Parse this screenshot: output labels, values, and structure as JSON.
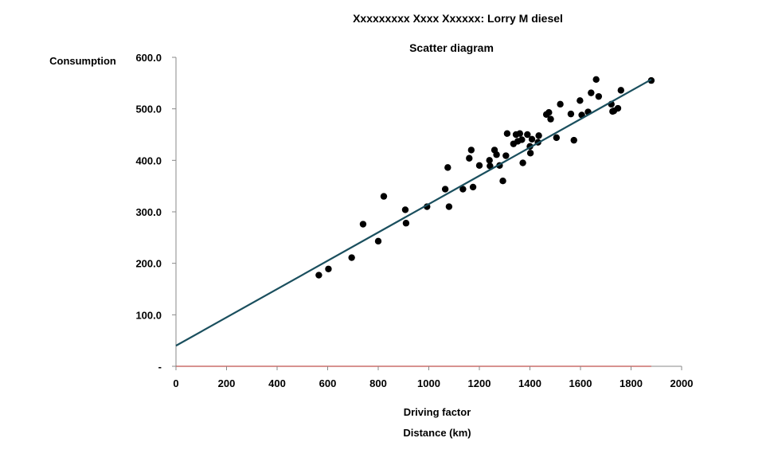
{
  "chart_data": {
    "type": "scatter",
    "title": "Xxxxxxxxx Xxxx Xxxxxx: Lorry M diesel",
    "subtitle": "Scatter diagram",
    "xlabel": "Driving factor",
    "xlabel_secondary": "Distance (km)",
    "ylabel": "Consumption",
    "xlim": [
      0,
      2000
    ],
    "ylim": [
      0,
      600
    ],
    "x_ticks": [
      0,
      200,
      400,
      600,
      800,
      1000,
      1200,
      1400,
      1600,
      1800,
      2000
    ],
    "x_tick_labels": [
      "0",
      "200",
      "400",
      "600",
      "800",
      "1000",
      "1200",
      "1400",
      "1600",
      "1800",
      "2000"
    ],
    "y_ticks": [
      0,
      100,
      200,
      300,
      400,
      500,
      600
    ],
    "y_tick_labels": [
      "-",
      "100.0",
      "200.0",
      "300.0",
      "400.0",
      "500.0",
      "600.0"
    ],
    "grid": false,
    "points": [
      {
        "x": 565,
        "y": 177
      },
      {
        "x": 603,
        "y": 189
      },
      {
        "x": 695,
        "y": 211
      },
      {
        "x": 740,
        "y": 276
      },
      {
        "x": 800,
        "y": 243
      },
      {
        "x": 822,
        "y": 330
      },
      {
        "x": 907,
        "y": 304
      },
      {
        "x": 910,
        "y": 278
      },
      {
        "x": 993,
        "y": 310
      },
      {
        "x": 1065,
        "y": 344
      },
      {
        "x": 1075,
        "y": 386
      },
      {
        "x": 1080,
        "y": 310
      },
      {
        "x": 1135,
        "y": 344
      },
      {
        "x": 1160,
        "y": 404
      },
      {
        "x": 1168,
        "y": 420
      },
      {
        "x": 1175,
        "y": 348
      },
      {
        "x": 1200,
        "y": 390
      },
      {
        "x": 1240,
        "y": 400
      },
      {
        "x": 1242,
        "y": 389
      },
      {
        "x": 1260,
        "y": 420
      },
      {
        "x": 1268,
        "y": 411
      },
      {
        "x": 1280,
        "y": 390
      },
      {
        "x": 1293,
        "y": 360
      },
      {
        "x": 1305,
        "y": 409
      },
      {
        "x": 1310,
        "y": 452
      },
      {
        "x": 1335,
        "y": 432
      },
      {
        "x": 1345,
        "y": 450
      },
      {
        "x": 1352,
        "y": 437
      },
      {
        "x": 1360,
        "y": 452
      },
      {
        "x": 1368,
        "y": 440
      },
      {
        "x": 1372,
        "y": 395
      },
      {
        "x": 1390,
        "y": 450
      },
      {
        "x": 1400,
        "y": 427
      },
      {
        "x": 1402,
        "y": 414
      },
      {
        "x": 1408,
        "y": 441
      },
      {
        "x": 1432,
        "y": 435
      },
      {
        "x": 1435,
        "y": 448
      },
      {
        "x": 1465,
        "y": 489
      },
      {
        "x": 1475,
        "y": 493
      },
      {
        "x": 1482,
        "y": 480
      },
      {
        "x": 1505,
        "y": 444
      },
      {
        "x": 1520,
        "y": 509
      },
      {
        "x": 1562,
        "y": 490
      },
      {
        "x": 1574,
        "y": 439
      },
      {
        "x": 1598,
        "y": 516
      },
      {
        "x": 1605,
        "y": 488
      },
      {
        "x": 1630,
        "y": 494
      },
      {
        "x": 1642,
        "y": 531
      },
      {
        "x": 1662,
        "y": 557
      },
      {
        "x": 1672,
        "y": 524
      },
      {
        "x": 1722,
        "y": 509
      },
      {
        "x": 1727,
        "y": 495
      },
      {
        "x": 1732,
        "y": 496
      },
      {
        "x": 1748,
        "y": 501
      },
      {
        "x": 1760,
        "y": 536
      },
      {
        "x": 1880,
        "y": 555
      }
    ],
    "trendline": {
      "x0": 0,
      "y0": 40,
      "x1": 1880,
      "y1": 557
    },
    "colors": {
      "points": "#000000",
      "trendline": "#1a4f5e",
      "x_axis": "#c0504d",
      "axis": "#888888"
    }
  }
}
